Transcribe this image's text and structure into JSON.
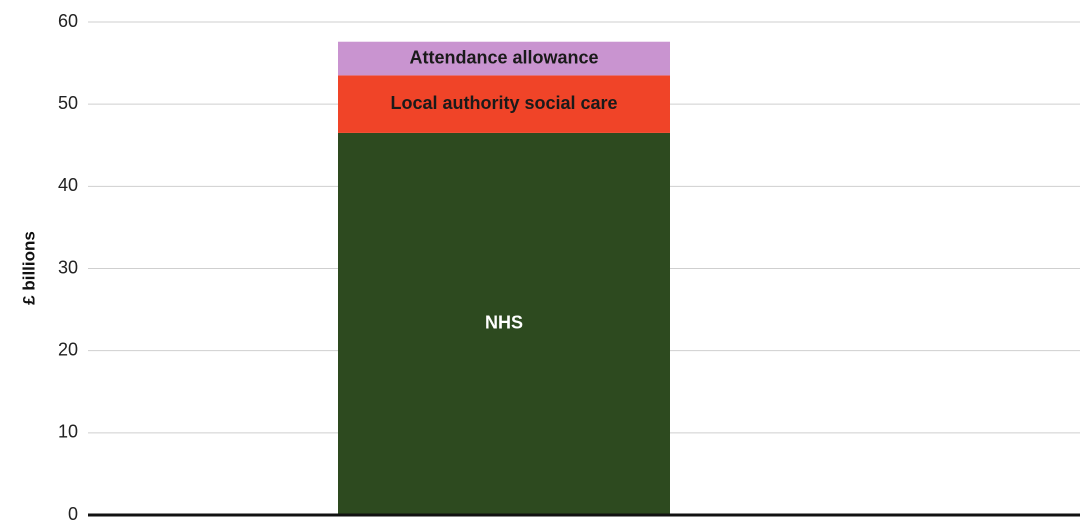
{
  "chart_data": {
    "type": "stacked-bar",
    "ylabel": "£ billions",
    "categories": [
      null
    ],
    "series": [
      {
        "name": "NHS",
        "color": "#2d4a1f",
        "values": [
          46.5
        ]
      },
      {
        "name": "Local authority social care",
        "color": "#f04428",
        "values": [
          7.0
        ]
      },
      {
        "name": "Attendance allowance",
        "color": "#c994d0",
        "values": [
          4.1
        ]
      }
    ],
    "ylim": [
      0,
      60
    ],
    "yticks": [
      0,
      10,
      20,
      30,
      40,
      50,
      60
    ],
    "grid": true
  }
}
